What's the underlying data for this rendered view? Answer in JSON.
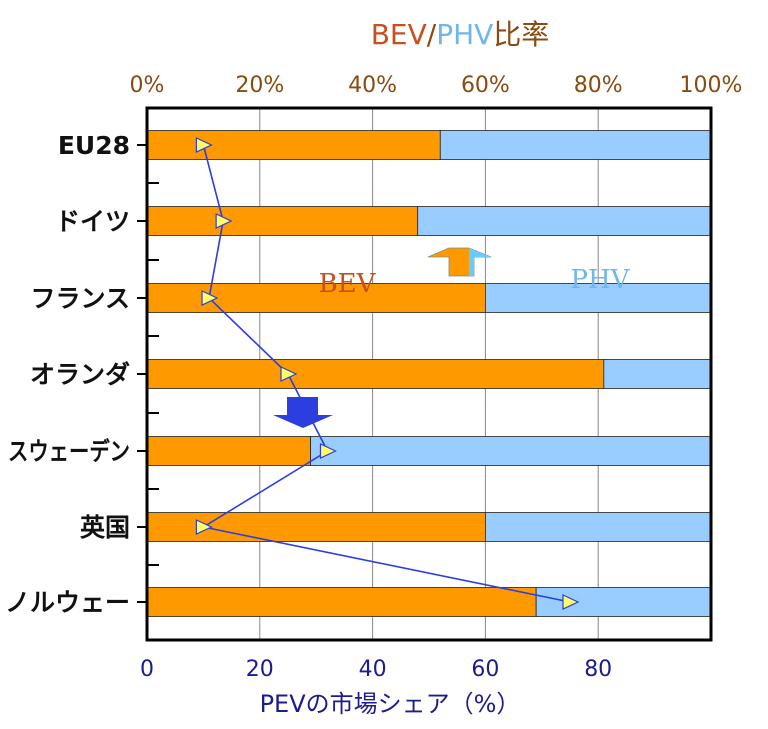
{
  "title": {
    "bev": "BEV",
    "sep": "/",
    "phv": "PHV",
    "rest": "比率"
  },
  "annotations": {
    "bev": "BEV",
    "phv": "PHV"
  },
  "colors": {
    "bev": "#ff9900",
    "phv": "#99ccff",
    "marker": "#ffff66",
    "line": "#2b3fe0",
    "arrow_down": "#2b3fe0",
    "arrow_up_left": "#ff9900",
    "arrow_up_right": "#66ccff"
  },
  "chart_data": {
    "type": "bar",
    "orientation": "horizontal",
    "stacked": true,
    "categories": [
      "EU28",
      "ドイツ",
      "フランス",
      "オランダ",
      "スウェーデン",
      "英国",
      "ノルウェー"
    ],
    "series": [
      {
        "name": "BEV",
        "values": [
          52,
          48,
          60,
          81,
          29,
          60,
          69
        ]
      },
      {
        "name": "PHV",
        "values": [
          48,
          52,
          40,
          19,
          71,
          40,
          31
        ]
      }
    ],
    "top_axis": {
      "title": "BEV/PHV比率",
      "ticks": [
        "0%",
        "20%",
        "40%",
        "60%",
        "80%",
        "100%"
      ],
      "range": [
        0,
        100
      ]
    },
    "bottom_axis": {
      "label": "PEVの市場シェア（%）",
      "ticks": [
        "0",
        "20",
        "40",
        "60",
        "80"
      ],
      "range": [
        0,
        100
      ]
    },
    "market_share_line": {
      "label": "PEVの市場シェア",
      "values": [
        10,
        13.5,
        11,
        25,
        32,
        10,
        75
      ]
    },
    "grid": true
  }
}
